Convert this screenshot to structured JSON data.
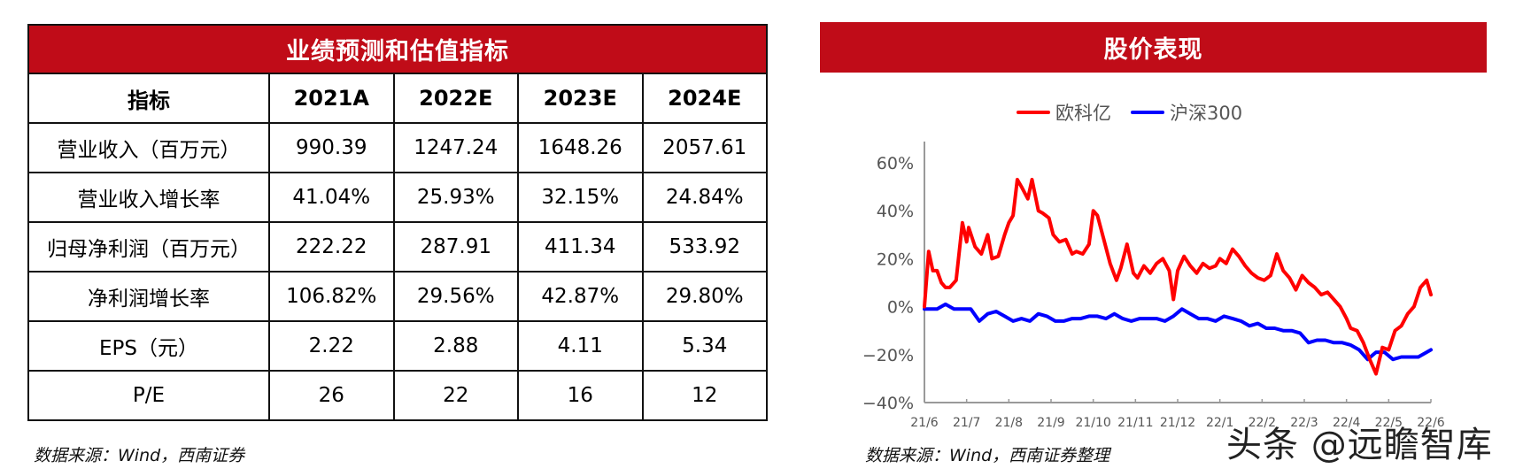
{
  "table": {
    "title": "业绩预测和估值指标",
    "columns": [
      "指标",
      "2021A",
      "2022E",
      "2023E",
      "2024E"
    ],
    "rows": [
      {
        "label": "营业收入（百万元）",
        "values": [
          "990.39",
          "1247.24",
          "1648.26",
          "2057.61"
        ]
      },
      {
        "label": "营业收入增长率",
        "values": [
          "41.04%",
          "25.93%",
          "32.15%",
          "24.84%"
        ]
      },
      {
        "label": "归母净利润（百万元）",
        "values": [
          "222.22",
          "287.91",
          "411.34",
          "533.92"
        ]
      },
      {
        "label": "净利润增长率",
        "values": [
          "106.82%",
          "29.56%",
          "42.87%",
          "29.80%"
        ]
      },
      {
        "label": "EPS（元）",
        "values": [
          "2.22",
          "2.88",
          "4.11",
          "5.34"
        ]
      },
      {
        "label": "P/E",
        "values": [
          "26",
          "22",
          "16",
          "12"
        ]
      }
    ],
    "source": "数据来源：Wind，西南证券",
    "header_color": "#c00c18"
  },
  "chart_panel": {
    "title": "股价表现",
    "source": "数据来源：Wind，西南证券整理",
    "header_color": "#c00c18"
  },
  "watermark": "头条 @远瞻智库",
  "chart_data": [
    {
      "type": "table",
      "title": "业绩预测和估值指标",
      "columns": [
        "指标",
        "2021A",
        "2022E",
        "2023E",
        "2024E"
      ],
      "rows": [
        [
          "营业收入（百万元）",
          990.39,
          1247.24,
          1648.26,
          2057.61
        ],
        [
          "营业收入增长率",
          "41.04%",
          "25.93%",
          "32.15%",
          "24.84%"
        ],
        [
          "归母净利润（百万元）",
          222.22,
          287.91,
          411.34,
          533.92
        ],
        [
          "净利润增长率",
          "106.82%",
          "29.56%",
          "42.87%",
          "29.80%"
        ],
        [
          "EPS（元）",
          2.22,
          2.88,
          4.11,
          5.34
        ],
        [
          "P/E",
          26,
          22,
          16,
          12
        ]
      ]
    },
    {
      "type": "line",
      "title": "股价表现",
      "xlabel": "",
      "ylabel": "",
      "categories": [
        "21/6",
        "21/7",
        "21/8",
        "21/9",
        "21/10",
        "21/11",
        "21/12",
        "22/1",
        "22/2",
        "22/3",
        "22/4",
        "22/5",
        "22/6"
      ],
      "yticks": [
        "60%",
        "40%",
        "20%",
        "0%",
        "-20%",
        "-40%"
      ],
      "ylim": [
        -40,
        60
      ],
      "grid": false,
      "legend_position": "top",
      "series": [
        {
          "name": "欧科亿",
          "color": "#ff0000",
          "x": [
            0,
            0.1,
            0.2,
            0.3,
            0.4,
            0.5,
            0.6,
            0.75,
            0.9,
            1.0,
            1.05,
            1.2,
            1.35,
            1.5,
            1.6,
            1.75,
            1.9,
            2.0,
            2.1,
            2.2,
            2.3,
            2.45,
            2.55,
            2.7,
            2.8,
            2.95,
            3.05,
            3.2,
            3.35,
            3.5,
            3.6,
            3.75,
            3.9,
            4.0,
            4.1,
            4.25,
            4.4,
            4.55,
            4.65,
            4.8,
            4.95,
            5.05,
            5.2,
            5.35,
            5.5,
            5.65,
            5.8,
            5.9,
            6.0,
            6.15,
            6.3,
            6.45,
            6.6,
            6.75,
            6.9,
            7.0,
            7.15,
            7.3,
            7.45,
            7.6,
            7.75,
            7.9,
            8.05,
            8.2,
            8.35,
            8.5,
            8.65,
            8.8,
            8.95,
            9.1,
            9.25,
            9.4,
            9.55,
            9.7,
            9.85,
            10.0,
            10.1,
            10.25,
            10.4,
            10.55,
            10.7,
            10.85,
            11.0,
            11.15,
            11.3,
            11.45,
            11.6,
            11.75,
            11.9,
            12.0
          ],
          "values": [
            0,
            23,
            15,
            15,
            10,
            8,
            8,
            11,
            35,
            27,
            33,
            25,
            22,
            30,
            20,
            21,
            30,
            35,
            38,
            53,
            50,
            45,
            53,
            40,
            39,
            37,
            30,
            27,
            28,
            22,
            23,
            22,
            26,
            40,
            38,
            28,
            18,
            11,
            16,
            26,
            14,
            12,
            17,
            14,
            18,
            20,
            15,
            3,
            15,
            21,
            17,
            14,
            18,
            16,
            17,
            20,
            18,
            24,
            21,
            17,
            14,
            12,
            11,
            13,
            22,
            15,
            12,
            7,
            13,
            10,
            8,
            5,
            6,
            3,
            0,
            -5,
            -9,
            -10,
            -15,
            -22,
            -28,
            -17,
            -18,
            -10,
            -8,
            -3,
            0,
            8,
            11,
            5
          ],
          "note": "approximate values read from curve"
        },
        {
          "name": "沪深300",
          "color": "#0000ff",
          "x": [
            0,
            0.3,
            0.5,
            0.7,
            0.9,
            1.1,
            1.3,
            1.5,
            1.7,
            1.9,
            2.1,
            2.3,
            2.5,
            2.7,
            2.9,
            3.1,
            3.3,
            3.5,
            3.7,
            3.9,
            4.1,
            4.3,
            4.5,
            4.7,
            4.9,
            5.1,
            5.3,
            5.5,
            5.7,
            5.9,
            6.1,
            6.3,
            6.5,
            6.7,
            6.9,
            7.1,
            7.3,
            7.5,
            7.7,
            7.9,
            8.1,
            8.3,
            8.5,
            8.7,
            8.9,
            9.1,
            9.3,
            9.5,
            9.7,
            9.9,
            10.1,
            10.3,
            10.5,
            10.7,
            10.9,
            11.1,
            11.3,
            11.5,
            11.7,
            11.9,
            12.0
          ],
          "values": [
            -1,
            -1,
            1,
            -1,
            -1,
            -1,
            -6,
            -3,
            -2,
            -4,
            -6,
            -5,
            -6,
            -3,
            -4,
            -6,
            -6,
            -5,
            -5,
            -4,
            -4,
            -5,
            -3,
            -5,
            -6,
            -5,
            -5,
            -5,
            -6,
            -4,
            -1,
            -3,
            -5,
            -5,
            -6,
            -4,
            -5,
            -6,
            -8,
            -7,
            -9,
            -9,
            -10,
            -10,
            -11,
            -15,
            -14,
            -14,
            -15,
            -15,
            -16,
            -18,
            -22,
            -19,
            -19,
            -22,
            -21,
            -21,
            -21,
            -19,
            -18
          ],
          "note": "approximate values read from curve"
        }
      ]
    }
  ]
}
